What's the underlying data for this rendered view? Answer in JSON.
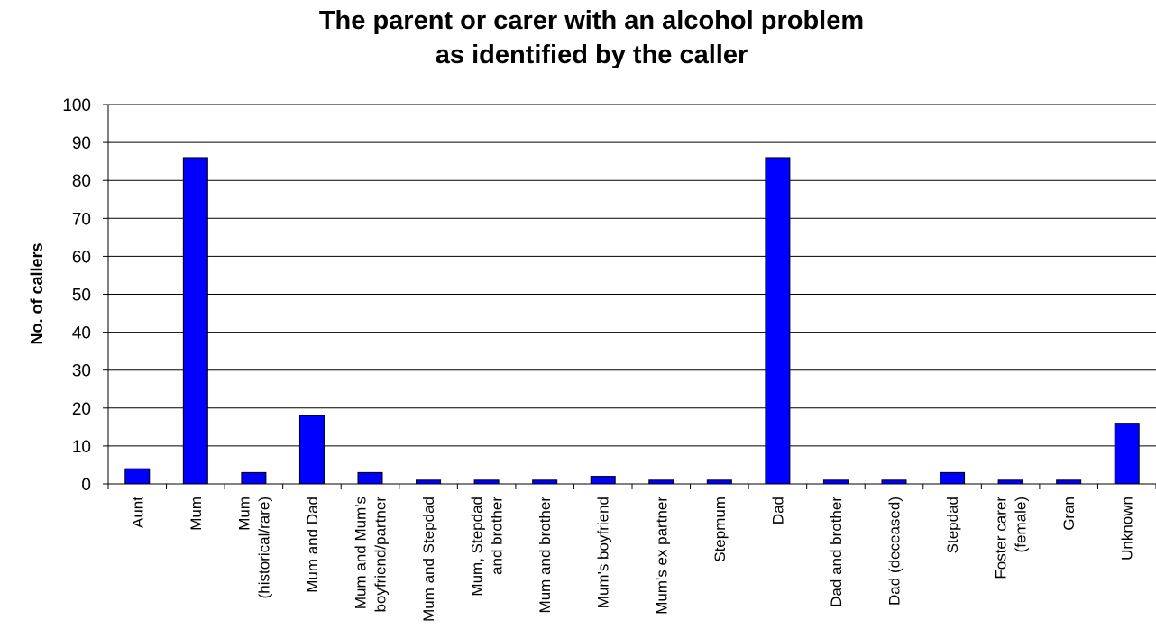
{
  "chart_data": {
    "type": "bar",
    "title_lines": [
      "The parent or carer with an alcohol problem",
      "as identified by the caller"
    ],
    "ylabel": "No. of callers",
    "xlabel": "",
    "ylim": [
      0,
      100
    ],
    "yticks": [
      0,
      10,
      20,
      30,
      40,
      50,
      60,
      70,
      80,
      90,
      100
    ],
    "grid": true,
    "legend": "none",
    "bar_color": "#0000FF",
    "categories": [
      [
        "Aunt"
      ],
      [
        "Mum"
      ],
      [
        "Mum",
        "(historical/rare)"
      ],
      [
        "Mum and Dad"
      ],
      [
        "Mum and Mum's",
        "boyfriend/partner"
      ],
      [
        "Mum and Stepdad"
      ],
      [
        "Mum, Stepdad",
        "and brother"
      ],
      [
        "Mum and brother"
      ],
      [
        "Mum's boyfriend"
      ],
      [
        "Mum's ex partner"
      ],
      [
        "Stepmum"
      ],
      [
        "Dad"
      ],
      [
        "Dad and brother"
      ],
      [
        "Dad (deceased)"
      ],
      [
        "Stepdad"
      ],
      [
        "Foster carer",
        "(female)"
      ],
      [
        "Gran"
      ],
      [
        "Unknown"
      ]
    ],
    "values": [
      4,
      86,
      3,
      18,
      3,
      1,
      1,
      1,
      2,
      1,
      1,
      86,
      1,
      1,
      3,
      1,
      1,
      16
    ]
  }
}
